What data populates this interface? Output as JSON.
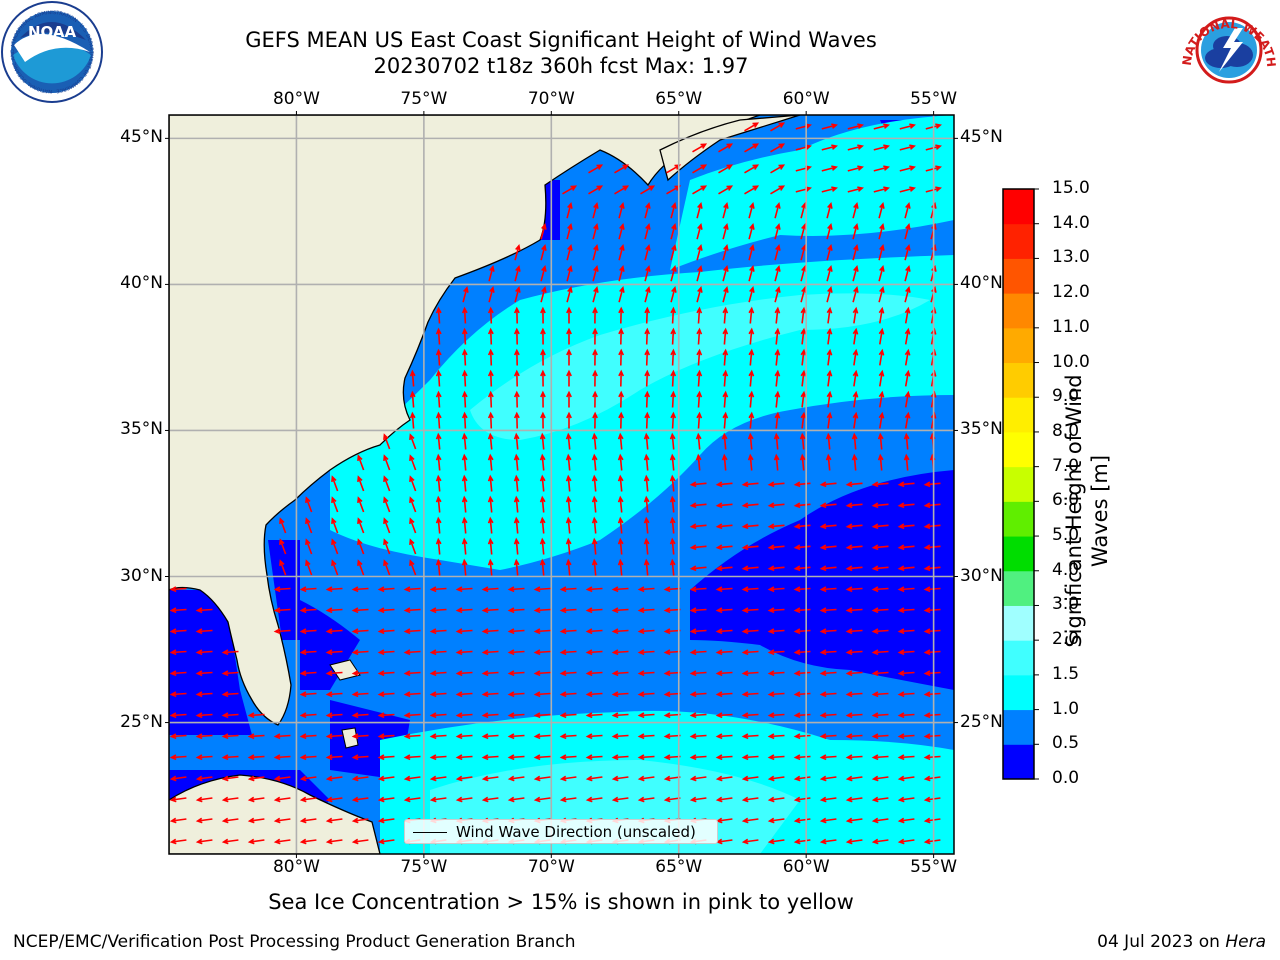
{
  "title": {
    "line1": "GEFS MEAN US East Coast Significant Height of Wind Waves",
    "line2": "20230702 t18z 360h fcst   Max: 1.97"
  },
  "map": {
    "lon_labels": [
      "80°W",
      "75°W",
      "70°W",
      "65°W",
      "60°W",
      "55°W"
    ],
    "lat_labels": [
      "45°N",
      "40°N",
      "35°N",
      "30°N",
      "25°N"
    ],
    "lon_range": [
      -85,
      -54.2
    ],
    "lat_range": [
      20.5,
      45.8
    ],
    "gridlines": true,
    "vector_color": "#ff0000"
  },
  "legend": {
    "label": "Wind Wave Direction (unscaled)",
    "placement": "lower-center"
  },
  "colorbar": {
    "label": "Significant Height of Wind Waves [m]",
    "ticks": [
      "0.0",
      "0.5",
      "1.0",
      "1.5",
      "2.0",
      "3.0",
      "4.0",
      "5.0",
      "6.0",
      "7.0",
      "8.0",
      "9.0",
      "10.0",
      "11.0",
      "12.0",
      "13.0",
      "14.0",
      "15.0"
    ],
    "colors": [
      "#0000ff",
      "#0080ff",
      "#00ffff",
      "#40ffff",
      "#a0ffff",
      "#50f080",
      "#00dd00",
      "#60ee00",
      "#c8ff00",
      "#ffff00",
      "#ffee00",
      "#ffcc00",
      "#ffaa00",
      "#ff8800",
      "#ff5500",
      "#ff2200",
      "#ff0000"
    ]
  },
  "caption": "Sea Ice Concentration > 15% is shown in pink to yellow",
  "footer": {
    "left": "NCEP/EMC/Verification Post Processing Product Generation Branch",
    "right_date": "04 Jul 2023 on ",
    "right_host": "Hera"
  },
  "logos": {
    "noaa": "NOAA",
    "noaa_ring": "NATIONAL OCEANIC AND ATMOSPHERIC ADMINISTRATION · U.S. DEPARTMENT OF COMMERCE",
    "nws_ring": "NATIONAL WEATHER SERVICE"
  }
}
